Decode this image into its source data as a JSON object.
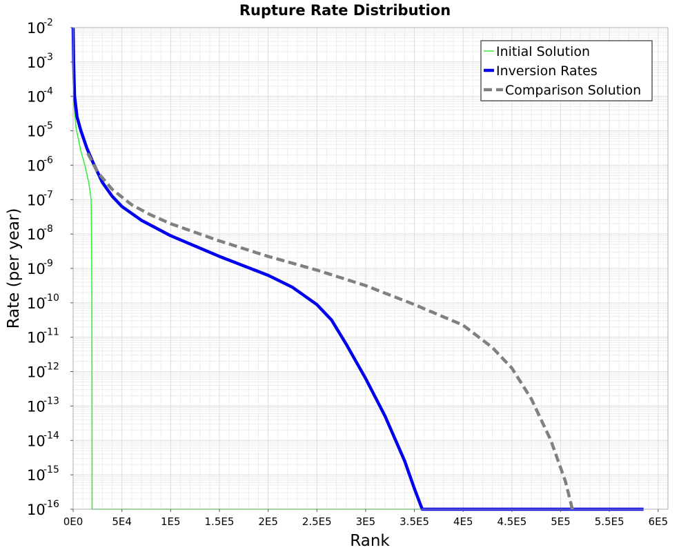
{
  "chart_data": {
    "type": "line",
    "title": "Rupture Rate Distribution",
    "xlabel": "Rank",
    "ylabel": "Rate (per year)",
    "xlim": [
      0,
      610000
    ],
    "ylim_log10": [
      -16,
      -2
    ],
    "yscale": "log",
    "grid": true,
    "legend_position": "top-right",
    "x_tick_labels": [
      "0E0",
      "5E4",
      "1E5",
      "1.5E5",
      "2E5",
      "2.5E5",
      "3E5",
      "3.5E5",
      "4E5",
      "4.5E5",
      "5E5",
      "5.5E5",
      "6E5"
    ],
    "x_tick_values": [
      0,
      50000,
      100000,
      150000,
      200000,
      250000,
      300000,
      350000,
      400000,
      450000,
      500000,
      550000,
      600000
    ],
    "y_tick_exponents": [
      -2,
      -3,
      -4,
      -5,
      -6,
      -7,
      -8,
      -9,
      -10,
      -11,
      -12,
      -13,
      -14,
      -15,
      -16
    ],
    "y_tick_base": "10",
    "series": [
      {
        "name": "Initial Solution",
        "color": "#33ee33",
        "style": "solid",
        "points_log10": [
          [
            0,
            -2.0
          ],
          [
            1000,
            -4.3
          ],
          [
            3000,
            -4.9
          ],
          [
            5000,
            -5.2
          ],
          [
            8000,
            -5.6
          ],
          [
            12000,
            -6.0
          ],
          [
            16000,
            -6.5
          ],
          [
            18000,
            -6.9
          ],
          [
            18500,
            -7.0
          ],
          [
            19000,
            -8.5
          ],
          [
            19200,
            -10
          ],
          [
            19400,
            -16
          ],
          [
            585000,
            -16
          ]
        ]
      },
      {
        "name": "Inversion Rates",
        "color": "#0000ee",
        "style": "solid",
        "points_log10": [
          [
            0,
            -2.0
          ],
          [
            500,
            -3.0
          ],
          [
            1500,
            -4.0
          ],
          [
            4000,
            -4.6
          ],
          [
            8000,
            -5.0
          ],
          [
            14000,
            -5.5
          ],
          [
            20000,
            -5.9
          ],
          [
            30000,
            -6.5
          ],
          [
            40000,
            -6.9
          ],
          [
            50000,
            -7.2
          ],
          [
            70000,
            -7.6
          ],
          [
            100000,
            -8.05
          ],
          [
            150000,
            -8.65
          ],
          [
            200000,
            -9.2
          ],
          [
            225000,
            -9.55
          ],
          [
            250000,
            -10.05
          ],
          [
            265000,
            -10.5
          ],
          [
            280000,
            -11.2
          ],
          [
            300000,
            -12.2
          ],
          [
            320000,
            -13.3
          ],
          [
            340000,
            -14.6
          ],
          [
            350000,
            -15.4
          ],
          [
            358000,
            -16.0
          ],
          [
            585000,
            -16.0
          ]
        ]
      },
      {
        "name": "Comparison Solution",
        "color": "#808080",
        "style": "dashed",
        "points_log10": [
          [
            15000,
            -5.65
          ],
          [
            25000,
            -6.2
          ],
          [
            40000,
            -6.7
          ],
          [
            60000,
            -7.15
          ],
          [
            80000,
            -7.45
          ],
          [
            100000,
            -7.7
          ],
          [
            150000,
            -8.2
          ],
          [
            200000,
            -8.65
          ],
          [
            250000,
            -9.05
          ],
          [
            300000,
            -9.5
          ],
          [
            350000,
            -10.05
          ],
          [
            400000,
            -10.65
          ],
          [
            430000,
            -11.3
          ],
          [
            450000,
            -11.9
          ],
          [
            470000,
            -12.8
          ],
          [
            490000,
            -14.0
          ],
          [
            505000,
            -15.2
          ],
          [
            512000,
            -16.0
          ]
        ]
      }
    ]
  }
}
